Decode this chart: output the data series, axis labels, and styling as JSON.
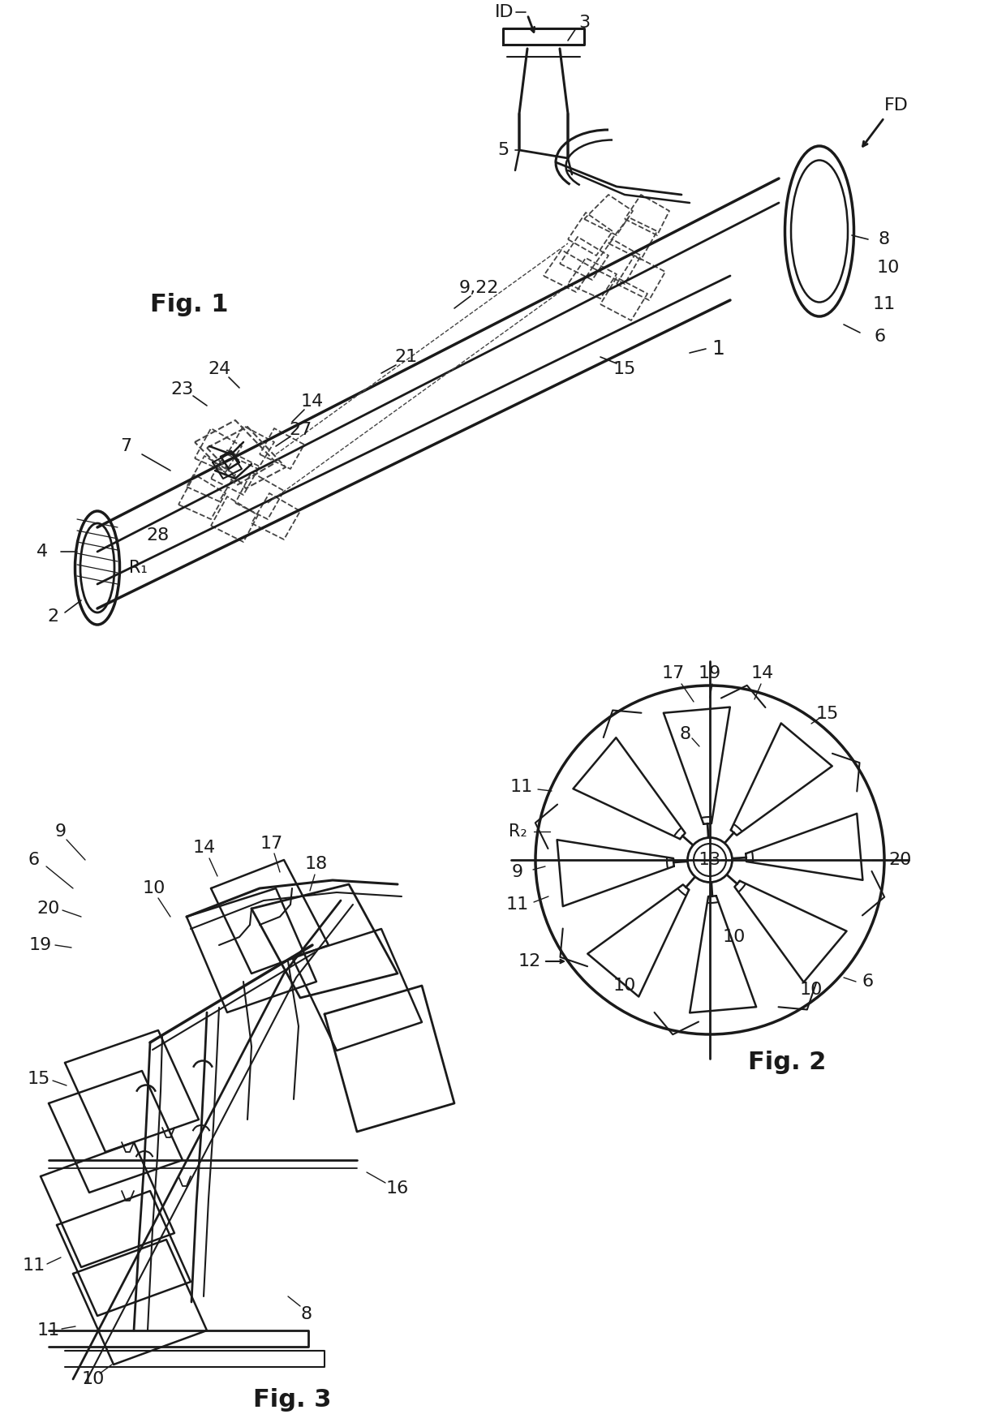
{
  "bg_color": "#ffffff",
  "line_color": "#1a1a1a",
  "dashed_color": "#444444",
  "fig_width": 12.4,
  "fig_height": 17.59,
  "dpi": 100,
  "fig1_label": "Fig. 1",
  "fig2_label": "Fig. 2",
  "fig3_label": "Fig. 3"
}
